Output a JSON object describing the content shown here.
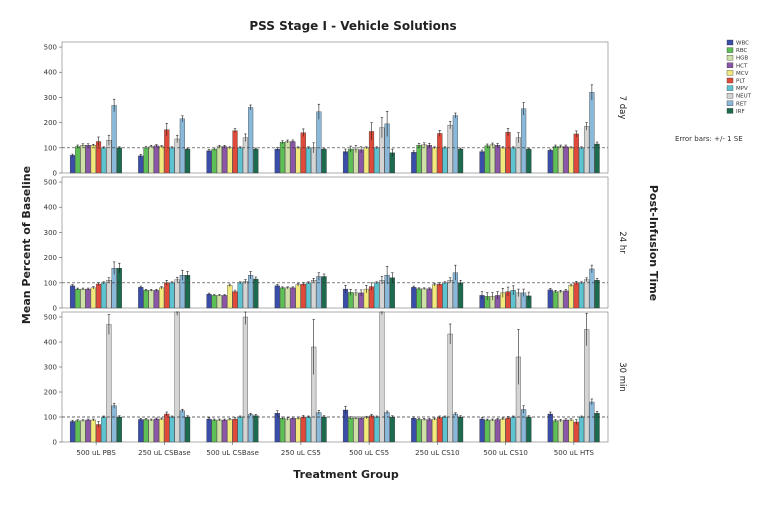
{
  "chart_data": {
    "type": "bar",
    "title": "PSS Stage I - Vehicle Solutions",
    "xlabel": "Treatment Group",
    "ylabel": "Mean Percent of Baseline",
    "facet_label": "Post-Infusion Time",
    "note": "Error bars: +/- 1 SE",
    "ylim": [
      0,
      520
    ],
    "yticks": [
      "0",
      "100",
      "200",
      "300",
      "400",
      "500"
    ],
    "reference_line": 100,
    "categories": [
      "500 uL PBS",
      "250 uL CSBase",
      "500 uL CSBase",
      "250 uL CS5",
      "500 uL CS5",
      "250 uL CS10",
      "500 uL CS10",
      "500 uL HTS"
    ],
    "series_names": [
      "WBC",
      "RBC",
      "HGB",
      "HCT",
      "MCV",
      "PLT",
      "MPV",
      "NEUT",
      "RET",
      "IRF"
    ],
    "series_colors": [
      "#3a4da8",
      "#5fbf57",
      "#cfe0a6",
      "#8b56a8",
      "#f2e97c",
      "#e04a3a",
      "#5ec3d0",
      "#d4d4d4",
      "#8ab8d8",
      "#1d6b4f"
    ],
    "panels": [
      {
        "label": "7 day",
        "values": [
          [
            70,
            105,
            110,
            110,
            110,
            125,
            100,
            130,
            268,
            100
          ],
          [
            68,
            100,
            105,
            108,
            105,
            172,
            100,
            135,
            215,
            95
          ],
          [
            88,
            95,
            105,
            105,
            100,
            168,
            100,
            140,
            260,
            95
          ],
          [
            95,
            122,
            125,
            125,
            100,
            160,
            100,
            100,
            243,
            95
          ],
          [
            85,
            95,
            95,
            92,
            100,
            165,
            100,
            180,
            195,
            80
          ],
          [
            82,
            110,
            112,
            110,
            100,
            157,
            100,
            190,
            228,
            95
          ],
          [
            85,
            108,
            112,
            110,
            100,
            162,
            100,
            140,
            255,
            95
          ],
          [
            90,
            105,
            105,
            105,
            100,
            155,
            100,
            185,
            320,
            115
          ]
        ],
        "errors": [
          [
            5,
            6,
            6,
            6,
            4,
            18,
            4,
            20,
            25,
            4
          ],
          [
            6,
            5,
            5,
            5,
            4,
            25,
            4,
            15,
            12,
            4
          ],
          [
            5,
            5,
            5,
            5,
            4,
            8,
            4,
            15,
            10,
            4
          ],
          [
            6,
            6,
            6,
            6,
            4,
            15,
            4,
            20,
            30,
            4
          ],
          [
            10,
            12,
            14,
            12,
            4,
            35,
            4,
            40,
            50,
            15
          ],
          [
            6,
            8,
            8,
            8,
            4,
            12,
            4,
            15,
            10,
            4
          ],
          [
            6,
            7,
            7,
            7,
            4,
            15,
            4,
            20,
            25,
            4
          ],
          [
            5,
            6,
            6,
            6,
            4,
            12,
            4,
            15,
            30,
            8
          ]
        ]
      },
      {
        "label": "24 hr",
        "values": [
          [
            88,
            75,
            75,
            75,
            80,
            95,
            100,
            110,
            158,
            158
          ],
          [
            82,
            70,
            70,
            70,
            80,
            100,
            100,
            112,
            130,
            130
          ],
          [
            55,
            50,
            50,
            50,
            90,
            65,
            100,
            105,
            130,
            115
          ],
          [
            88,
            80,
            80,
            80,
            92,
            95,
            100,
            110,
            125,
            125
          ],
          [
            75,
            62,
            60,
            60,
            75,
            85,
            100,
            110,
            130,
            120
          ],
          [
            82,
            76,
            76,
            76,
            92,
            95,
            100,
            110,
            140,
            100
          ],
          [
            50,
            46,
            46,
            50,
            60,
            65,
            70,
            60,
            60,
            48
          ],
          [
            72,
            65,
            65,
            68,
            90,
            100,
            100,
            112,
            155,
            110
          ]
        ],
        "errors": [
          [
            5,
            4,
            4,
            4,
            5,
            6,
            4,
            10,
            25,
            20
          ],
          [
            5,
            4,
            4,
            4,
            5,
            10,
            4,
            10,
            20,
            15
          ],
          [
            4,
            3,
            3,
            3,
            5,
            6,
            4,
            8,
            15,
            8
          ],
          [
            5,
            4,
            4,
            4,
            5,
            6,
            4,
            8,
            15,
            10
          ],
          [
            15,
            12,
            12,
            12,
            15,
            15,
            4,
            15,
            35,
            20
          ],
          [
            5,
            4,
            4,
            4,
            5,
            6,
            4,
            10,
            30,
            10
          ],
          [
            15,
            15,
            15,
            15,
            18,
            18,
            18,
            15,
            15,
            15
          ],
          [
            6,
            5,
            5,
            5,
            5,
            6,
            4,
            8,
            15,
            8
          ]
        ]
      },
      {
        "label": "30 min",
        "values": [
          [
            82,
            85,
            85,
            88,
            88,
            70,
            100,
            470,
            145,
            100
          ],
          [
            90,
            90,
            88,
            92,
            92,
            112,
            100,
            522,
            125,
            100
          ],
          [
            92,
            88,
            88,
            88,
            90,
            92,
            100,
            500,
            110,
            105
          ],
          [
            115,
            95,
            92,
            95,
            95,
            100,
            100,
            380,
            118,
            100
          ],
          [
            128,
            96,
            95,
            95,
            98,
            105,
            100,
            525,
            118,
            100
          ],
          [
            95,
            90,
            90,
            90,
            92,
            98,
            100,
            432,
            112,
            100
          ],
          [
            92,
            88,
            88,
            90,
            92,
            96,
            100,
            340,
            130,
            100
          ],
          [
            112,
            85,
            85,
            88,
            88,
            80,
            100,
            450,
            160,
            115
          ]
        ],
        "errors": [
          [
            5,
            4,
            4,
            4,
            4,
            12,
            4,
            40,
            10,
            5
          ],
          [
            5,
            4,
            4,
            4,
            4,
            8,
            4,
            15,
            6,
            5
          ],
          [
            5,
            4,
            4,
            4,
            4,
            6,
            4,
            30,
            5,
            5
          ],
          [
            10,
            5,
            5,
            5,
            5,
            6,
            4,
            110,
            8,
            5
          ],
          [
            15,
            5,
            5,
            5,
            5,
            6,
            4,
            15,
            6,
            5
          ],
          [
            6,
            4,
            4,
            4,
            4,
            6,
            4,
            40,
            5,
            5
          ],
          [
            5,
            4,
            4,
            4,
            4,
            6,
            4,
            110,
            15,
            5
          ],
          [
            8,
            5,
            5,
            5,
            5,
            10,
            4,
            65,
            12,
            8
          ]
        ]
      }
    ]
  }
}
